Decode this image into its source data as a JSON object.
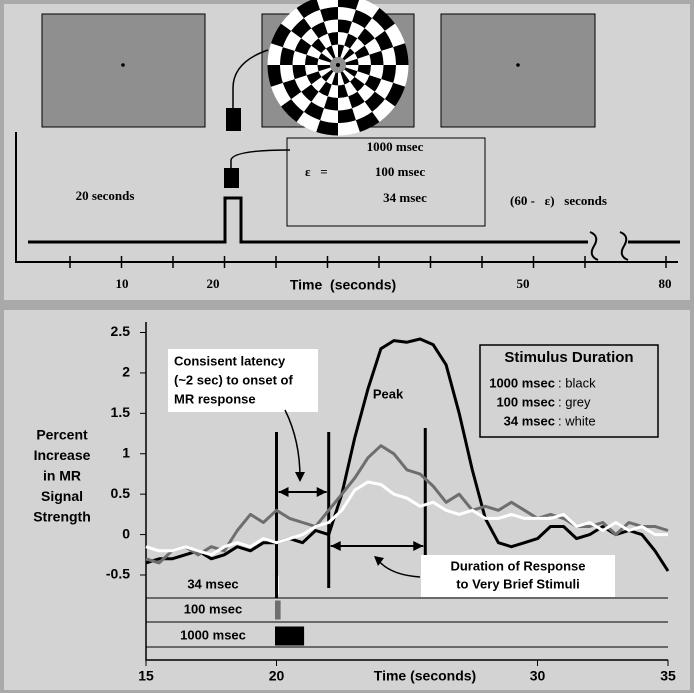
{
  "timeline": {
    "left_text": "20 seconds",
    "durations": [
      "1000 msec",
      "100 msec",
      "34 msec"
    ],
    "epsilon": "ε   =",
    "right_text": "(60 -   ε)   seconds",
    "tick_labels": [
      "10",
      "20",
      "50",
      "80"
    ],
    "xlabel": "Time  (seconds)"
  },
  "chart_data": {
    "type": "line",
    "ylabel": [
      "Percent",
      "Increase",
      "in MR",
      "Signal",
      "Strength"
    ],
    "xlabel": "Time (seconds)",
    "x": [
      15,
      15.5,
      16,
      16.5,
      17,
      17.5,
      18,
      18.5,
      19,
      19.5,
      20,
      20.5,
      21,
      21.5,
      22,
      22.5,
      23,
      23.5,
      24,
      24.5,
      25,
      25.5,
      26,
      26.5,
      27,
      27.5,
      28,
      28.5,
      29,
      29.5,
      30,
      30.5,
      31,
      31.5,
      32,
      32.5,
      33,
      33.5,
      34,
      34.5,
      35
    ],
    "series": [
      {
        "name": "1000 msec",
        "color": "#000000",
        "values": [
          -0.35,
          -0.3,
          -0.3,
          -0.25,
          -0.2,
          -0.3,
          -0.25,
          -0.15,
          -0.2,
          -0.1,
          -0.1,
          -0.05,
          -0.1,
          0.05,
          0,
          0.5,
          1.2,
          1.8,
          2.3,
          2.4,
          2.38,
          2.42,
          2.35,
          2.1,
          1.5,
          0.8,
          0.2,
          -0.1,
          -0.15,
          -0.1,
          -0.05,
          0.1,
          0.1,
          -0.05,
          0,
          0.1,
          0,
          0.05,
          0,
          -0.2,
          -0.45
        ]
      },
      {
        "name": "100 msec",
        "color": "#6e6e6e",
        "values": [
          -0.3,
          -0.35,
          -0.2,
          -0.15,
          -0.25,
          -0.15,
          -0.2,
          0.05,
          0.25,
          0.15,
          0.3,
          0.2,
          0.15,
          0.1,
          0.3,
          0.5,
          0.7,
          0.95,
          1.1,
          1,
          0.8,
          0.75,
          0.6,
          0.4,
          0.5,
          0.3,
          0.35,
          0.3,
          0.4,
          0.3,
          0.2,
          0.25,
          0.2,
          0.1,
          0.1,
          0.15,
          0,
          0.15,
          0.1,
          0.1,
          0.05
        ]
      },
      {
        "name": "34 msec",
        "color": "#ffffff",
        "values": [
          -0.15,
          -0.2,
          -0.2,
          -0.15,
          -0.2,
          -0.25,
          -0.15,
          -0.1,
          -0.15,
          -0.05,
          -0.1,
          -0.05,
          0,
          0.1,
          0.15,
          0.3,
          0.55,
          0.65,
          0.62,
          0.5,
          0.45,
          0.35,
          0.4,
          0.3,
          0.25,
          0.3,
          0.2,
          0.2,
          0.25,
          0.2,
          0.2,
          0.2,
          0.25,
          0.1,
          0.15,
          0.05,
          0.15,
          0.05,
          0.1,
          0,
          0
        ]
      }
    ],
    "legend_title": "Stimulus Duration",
    "legend_colors": [
      ": black",
      ": grey",
      ": white"
    ],
    "xlim": [
      15,
      35
    ],
    "ylim": [
      -0.5,
      2.5
    ],
    "xticks": [
      15,
      20,
      30,
      35
    ],
    "yticks": [
      2.5,
      2,
      1.5,
      1,
      0.5,
      0,
      -0.5
    ],
    "vlines": [
      20,
      22,
      25.7
    ],
    "stimulus_bars": [
      {
        "label": "34 msec",
        "start": 20,
        "end": 20.034,
        "color": "#ffffff"
      },
      {
        "label": "100 msec",
        "start": 20,
        "end": 20.1,
        "color": "#6e6e6e"
      },
      {
        "label": "1000 msec",
        "start": 20,
        "end": 21,
        "color": "#000000"
      }
    ],
    "annotations": {
      "latency": [
        "Consisent latency",
        "(~2 sec) to onset of",
        "MR response"
      ],
      "peak": "Peak",
      "duration": [
        "Duration of Response",
        "to Very Brief Stimuli"
      ]
    }
  }
}
